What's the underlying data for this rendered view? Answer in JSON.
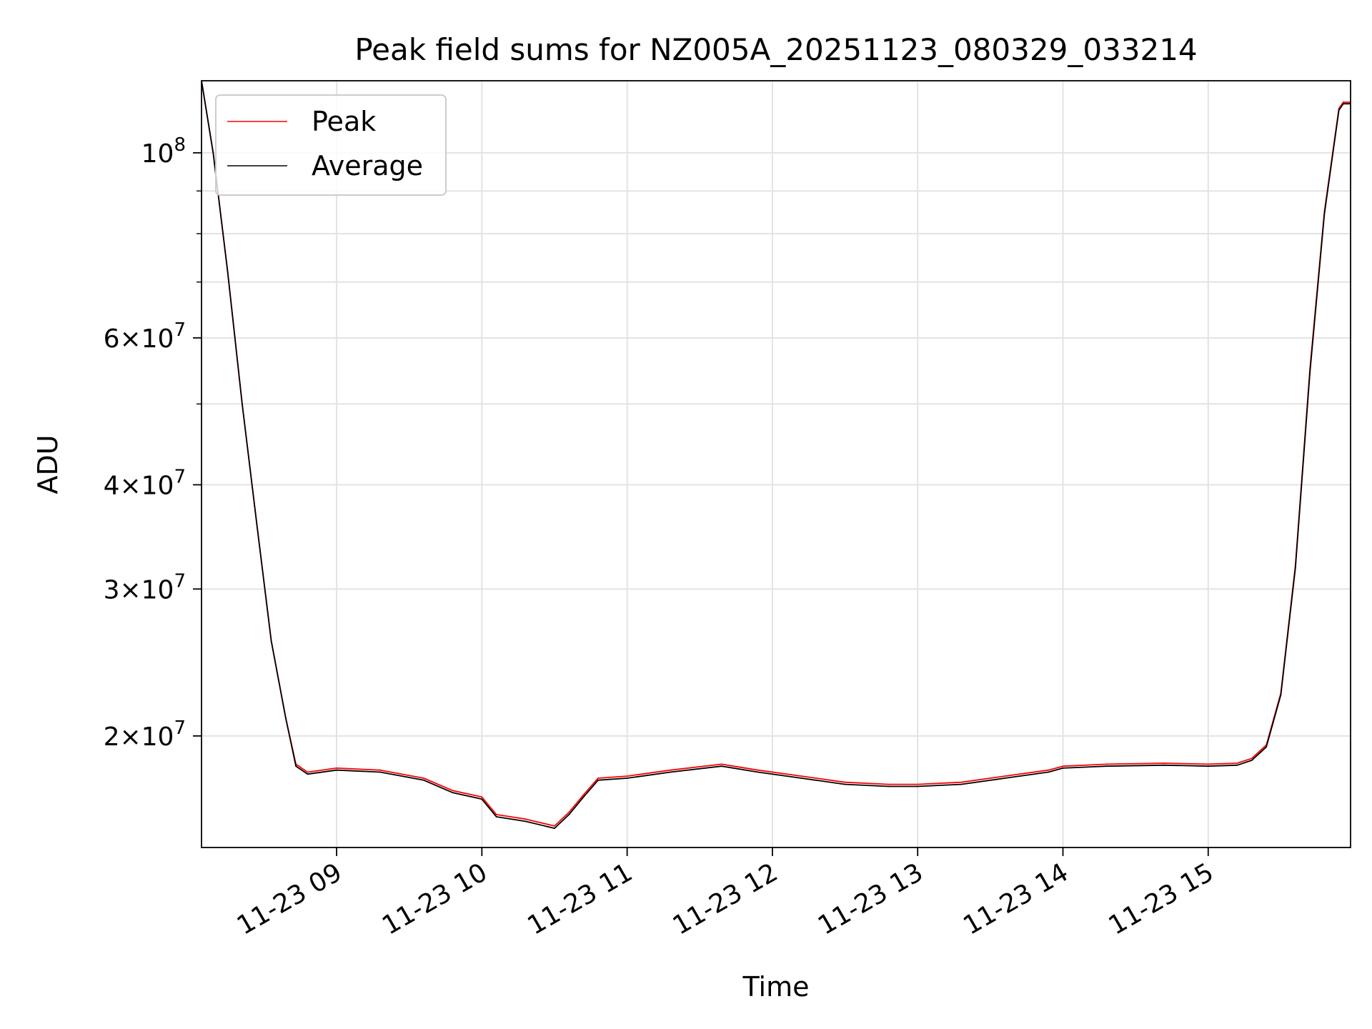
{
  "chart_data": {
    "type": "line",
    "title": "Peak field sums for NZ005A_20251123_080329_033214",
    "xlabel": "Time",
    "ylabel": "ADU",
    "yscale": "log",
    "xlim": [
      8.07,
      15.98
    ],
    "ylim": [
      14700000,
      122000000
    ],
    "grid": true,
    "legend_position": "upper-left",
    "x_ticks": [
      {
        "value": 9,
        "label": "11-23 09"
      },
      {
        "value": 10,
        "label": "11-23 10"
      },
      {
        "value": 11,
        "label": "11-23 11"
      },
      {
        "value": 12,
        "label": "11-23 12"
      },
      {
        "value": 13,
        "label": "11-23 13"
      },
      {
        "value": 14,
        "label": "11-23 14"
      },
      {
        "value": 15,
        "label": "11-23 15"
      }
    ],
    "y_ticks": [
      {
        "value": 20000000,
        "base": "2",
        "exp": "7"
      },
      {
        "value": 30000000,
        "base": "3",
        "exp": "7"
      },
      {
        "value": 40000000,
        "base": "4",
        "exp": "7"
      },
      {
        "value": 60000000,
        "base": "6",
        "exp": "7"
      },
      {
        "value": 100000000,
        "base": "",
        "exp": "8"
      }
    ],
    "times_label": "×",
    "ten_label": "10",
    "y_minor_ticks": [
      50000000,
      70000000,
      80000000,
      90000000
    ],
    "series": [
      {
        "name": "Peak",
        "color": "#ff0000",
        "x": [
          8.07,
          8.15,
          8.25,
          8.35,
          8.45,
          8.55,
          8.65,
          8.72,
          8.8,
          9.0,
          9.3,
          9.6,
          9.8,
          10.0,
          10.1,
          10.3,
          10.5,
          10.6,
          10.7,
          10.8,
          11.0,
          11.3,
          11.65,
          11.9,
          12.2,
          12.5,
          12.8,
          13.0,
          13.3,
          13.6,
          13.9,
          14.0,
          14.3,
          14.7,
          15.0,
          15.2,
          15.3,
          15.4,
          15.5,
          15.6,
          15.7,
          15.8,
          15.9,
          15.93,
          15.98
        ],
        "y": [
          122000000,
          100000000,
          72000000,
          50000000,
          36000000,
          26000000,
          21000000,
          18500000,
          18100000,
          18300000,
          18200000,
          17800000,
          17200000,
          16900000,
          16100000,
          15900000,
          15600000,
          16200000,
          17000000,
          17800000,
          17900000,
          18200000,
          18500000,
          18200000,
          17900000,
          17600000,
          17500000,
          17500000,
          17600000,
          17900000,
          18200000,
          18400000,
          18500000,
          18550000,
          18500000,
          18550000,
          18800000,
          19500000,
          22500000,
          32000000,
          55000000,
          85000000,
          113000000,
          115000000,
          115000000
        ]
      },
      {
        "name": "Average",
        "color": "#000000",
        "x": [
          8.07,
          8.15,
          8.25,
          8.35,
          8.45,
          8.55,
          8.65,
          8.72,
          8.8,
          9.0,
          9.3,
          9.6,
          9.8,
          10.0,
          10.1,
          10.3,
          10.5,
          10.6,
          10.7,
          10.8,
          11.0,
          11.3,
          11.65,
          11.9,
          12.2,
          12.5,
          12.8,
          13.0,
          13.3,
          13.6,
          13.9,
          14.0,
          14.3,
          14.7,
          15.0,
          15.2,
          15.3,
          15.4,
          15.5,
          15.6,
          15.7,
          15.8,
          15.9,
          15.93,
          15.98
        ],
        "y": [
          122000000,
          100000000,
          72000000,
          50000000,
          36000000,
          26000000,
          21000000,
          18400000,
          18000000,
          18200000,
          18100000,
          17700000,
          17100000,
          16800000,
          16000000,
          15800000,
          15500000,
          16100000,
          16900000,
          17700000,
          17800000,
          18100000,
          18400000,
          18100000,
          17800000,
          17500000,
          17400000,
          17400000,
          17500000,
          17800000,
          18100000,
          18300000,
          18400000,
          18450000,
          18400000,
          18450000,
          18700000,
          19400000,
          22400000,
          31800000,
          54500000,
          84500000,
          112500000,
          114500000,
          114500000
        ]
      }
    ]
  }
}
